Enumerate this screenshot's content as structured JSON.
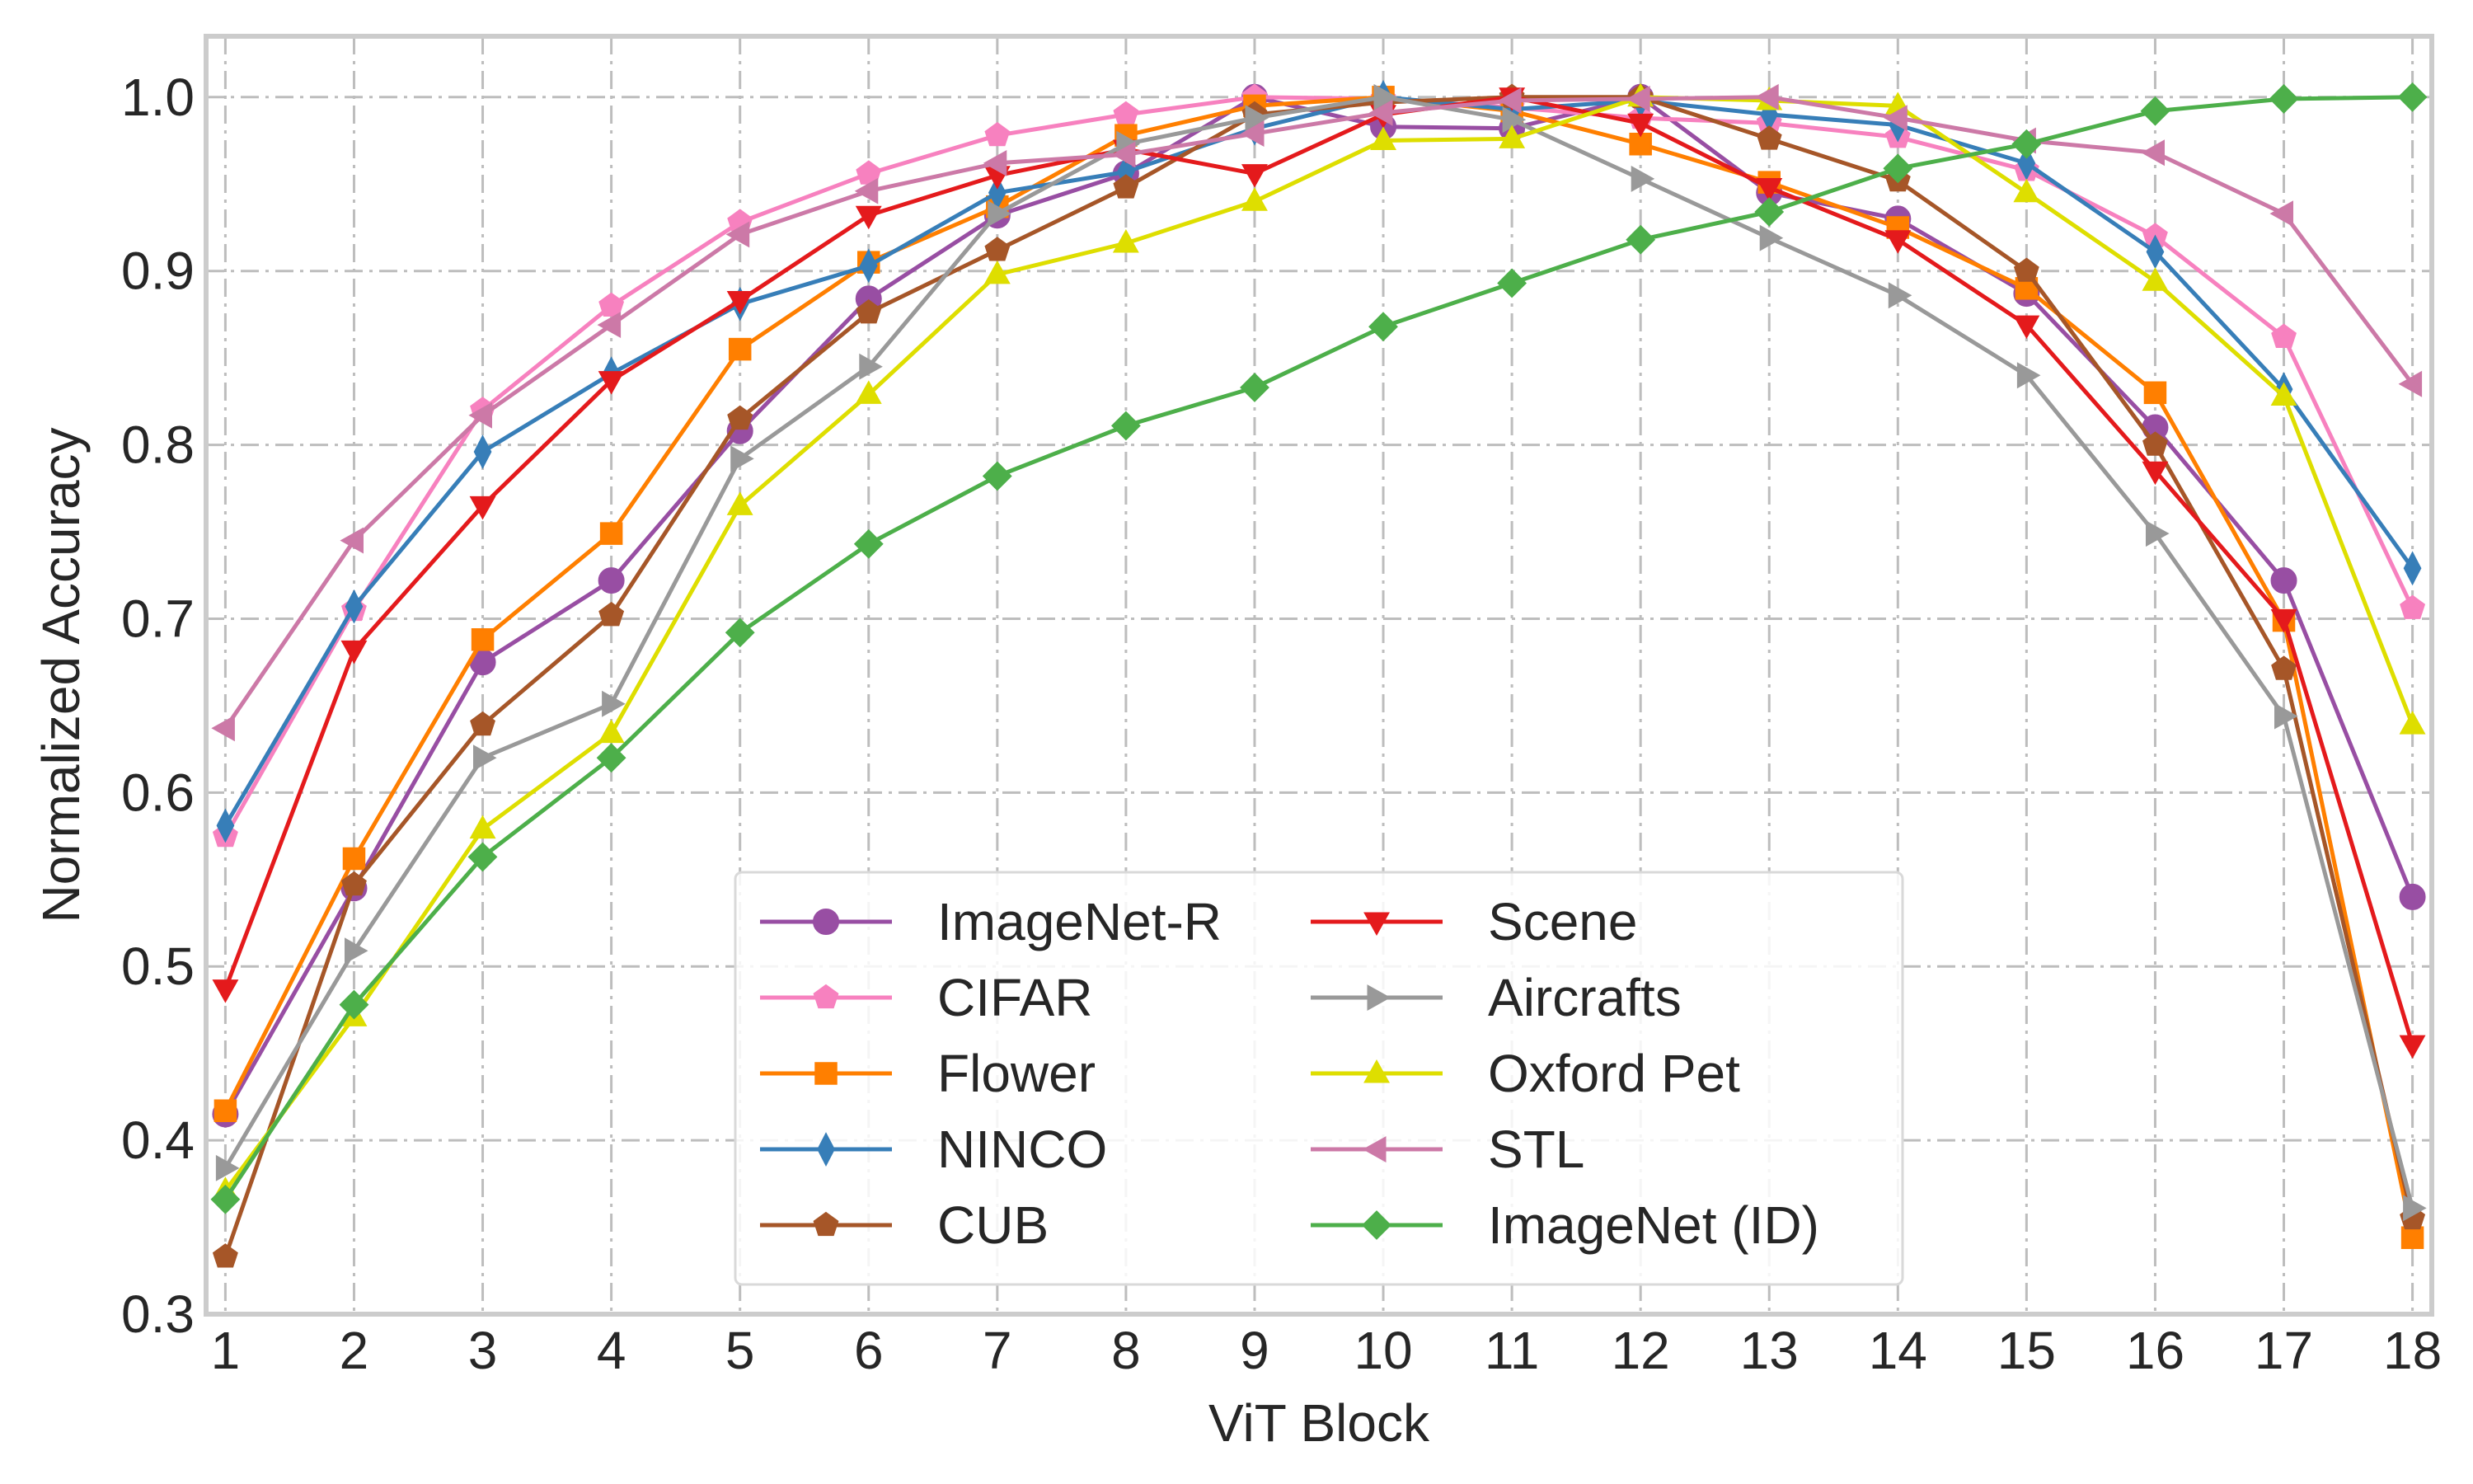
{
  "chart_data": {
    "type": "line",
    "title": "",
    "xlabel": "ViT Block",
    "ylabel": "Normalized  Accuracy",
    "x": [
      1,
      2,
      3,
      4,
      5,
      6,
      7,
      8,
      9,
      10,
      11,
      12,
      13,
      14,
      15,
      16,
      17,
      18
    ],
    "x_tick_labels": [
      "1",
      "2",
      "3",
      "4",
      "5",
      "6",
      "7",
      "8",
      "9",
      "10",
      "11",
      "12",
      "13",
      "14",
      "15",
      "16",
      "17",
      "18"
    ],
    "xlim": [
      0.85,
      18.15
    ],
    "ylim": [
      0.3,
      1.035
    ],
    "y_ticks": [
      0.3,
      0.4,
      0.5,
      0.6,
      0.7,
      0.8,
      0.9,
      1.0
    ],
    "y_tick_labels": [
      "0.3",
      "0.4",
      "0.5",
      "0.6",
      "0.7",
      "0.8",
      "0.9",
      "1.0"
    ],
    "grid": true,
    "legend_position": "bottom-center",
    "legend_columns": 2,
    "series": [
      {
        "name": "ImageNet-R",
        "color": "#984ea3",
        "marker": "circle",
        "values": [
          0.415,
          0.545,
          0.675,
          0.722,
          0.808,
          0.884,
          0.932,
          0.956,
          1.0,
          0.983,
          0.982,
          1.0,
          0.945,
          0.93,
          0.887,
          0.81,
          0.722,
          0.54
        ]
      },
      {
        "name": "CIFAR",
        "color": "#f781bf",
        "marker": "pentagon",
        "values": [
          0.575,
          0.705,
          0.82,
          0.88,
          0.928,
          0.956,
          0.978,
          0.99,
          1.0,
          0.999,
          0.994,
          0.988,
          0.985,
          0.977,
          0.958,
          0.92,
          0.862,
          0.706
        ]
      },
      {
        "name": "Flower",
        "color": "#ff7f00",
        "marker": "square",
        "values": [
          0.417,
          0.562,
          0.688,
          0.749,
          0.855,
          0.905,
          0.937,
          0.978,
          0.995,
          1.0,
          0.992,
          0.973,
          0.951,
          0.925,
          0.89,
          0.83,
          0.699,
          0.344
        ]
      },
      {
        "name": "NINCO",
        "color": "#377eb8",
        "marker": "thin-diamond",
        "values": [
          0.581,
          0.707,
          0.796,
          0.841,
          0.881,
          0.903,
          0.945,
          0.957,
          0.982,
          1.0,
          0.993,
          0.998,
          0.99,
          0.984,
          0.962,
          0.911,
          0.832,
          0.729
        ]
      },
      {
        "name": "CUB",
        "color": "#a65628",
        "marker": "pentagon",
        "values": [
          0.333,
          0.547,
          0.639,
          0.702,
          0.815,
          0.876,
          0.912,
          0.948,
          0.99,
          0.997,
          1.0,
          1.0,
          0.976,
          0.952,
          0.9,
          0.8,
          0.671,
          0.355
        ]
      },
      {
        "name": "Scene",
        "color": "#e41a1c",
        "marker": "triangle-down",
        "values": [
          0.487,
          0.682,
          0.765,
          0.837,
          0.883,
          0.932,
          0.955,
          0.97,
          0.956,
          0.99,
          1.0,
          0.985,
          0.948,
          0.918,
          0.869,
          0.785,
          0.7,
          0.455
        ]
      },
      {
        "name": "Aircrafts",
        "color": "#999999",
        "marker": "triangle-right",
        "values": [
          0.384,
          0.509,
          0.62,
          0.651,
          0.792,
          0.845,
          0.933,
          0.973,
          0.988,
          1.0,
          0.987,
          0.953,
          0.919,
          0.886,
          0.84,
          0.749,
          0.644,
          0.361
        ]
      },
      {
        "name": "Oxford Pet",
        "color": "#dede00",
        "marker": "triangle-up",
        "values": [
          0.371,
          0.471,
          0.579,
          0.634,
          0.765,
          0.829,
          0.898,
          0.916,
          0.94,
          0.975,
          0.976,
          1.0,
          0.998,
          0.995,
          0.945,
          0.894,
          0.828,
          0.639
        ]
      },
      {
        "name": "STL",
        "color": "#cc79a7",
        "marker": "triangle-left",
        "values": [
          0.637,
          0.745,
          0.817,
          0.869,
          0.921,
          0.946,
          0.962,
          0.967,
          0.979,
          0.991,
          0.998,
          0.999,
          1.0,
          0.988,
          0.975,
          0.968,
          0.933,
          0.835
        ]
      },
      {
        "name": "ImageNet (ID)",
        "color": "#4daf4a",
        "marker": "diamond",
        "values": [
          0.366,
          0.478,
          0.563,
          0.62,
          0.692,
          0.743,
          0.782,
          0.811,
          0.833,
          0.868,
          0.893,
          0.918,
          0.934,
          0.959,
          0.973,
          0.992,
          0.999,
          1.0
        ]
      }
    ]
  }
}
